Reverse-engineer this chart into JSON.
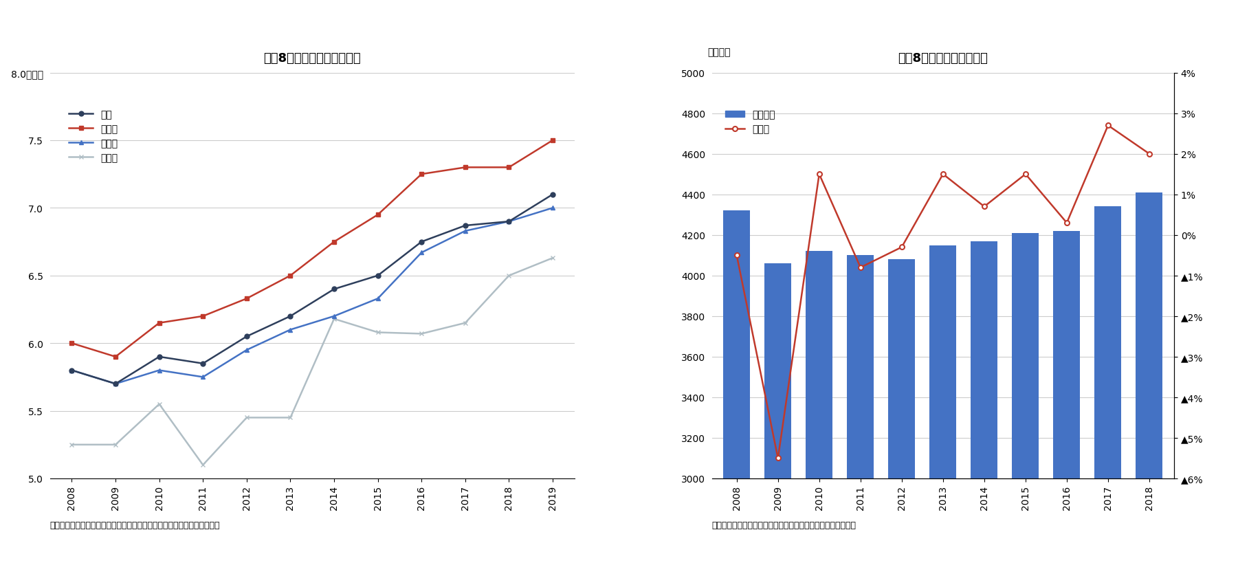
{
  "chart5": {
    "title": "図袆8５　年収倍率（平均）",
    "years": [
      2008,
      2009,
      2010,
      2011,
      2012,
      2013,
      2014,
      2015,
      2016,
      2017,
      2018,
      2019
    ],
    "series_order": [
      "全国",
      "首都圈",
      "近畿圈",
      "東海圈"
    ],
    "series": {
      "全国": {
        "values": [
          5.8,
          5.7,
          5.9,
          5.85,
          6.05,
          6.2,
          6.4,
          6.5,
          6.75,
          6.87,
          6.9,
          7.1
        ],
        "color": "#2e3f5c",
        "marker": "o",
        "linestyle": "-",
        "zorder": 4
      },
      "首都圈": {
        "values": [
          6.0,
          5.9,
          6.15,
          6.2,
          6.33,
          6.5,
          6.75,
          6.95,
          7.25,
          7.3,
          7.3,
          7.5
        ],
        "color": "#c0392b",
        "marker": "s",
        "linestyle": "-",
        "zorder": 3
      },
      "近畿圈": {
        "values": [
          5.8,
          5.7,
          5.8,
          5.75,
          5.95,
          6.1,
          6.2,
          6.33,
          6.67,
          6.83,
          6.9,
          7.0
        ],
        "color": "#4472c4",
        "marker": "^",
        "linestyle": "-",
        "zorder": 3
      },
      "東海圈": {
        "values": [
          5.25,
          5.25,
          5.55,
          5.1,
          5.45,
          5.45,
          6.18,
          6.08,
          6.07,
          6.15,
          6.5,
          6.63
        ],
        "color": "#b0bec5",
        "marker": "x",
        "linestyle": "-",
        "zorder": 2
      }
    },
    "ylim": [
      5.0,
      8.0
    ],
    "yticks": [
      5.0,
      5.5,
      6.0,
      6.5,
      7.0,
      7.5,
      8.0
    ],
    "ytick_labels": [
      "5.0",
      "5.5",
      "6.0",
      "6.5",
      "7.0",
      "7.5",
      "8.0（倍）"
    ],
    "source": "（資料）住宅金融支援機構の公表データを基にニッセイ基礎研究所が作成"
  },
  "chart6": {
    "title": "図袆8６　平均給与の推移",
    "ylabel_left": "（千円）",
    "years": [
      2008,
      2009,
      2010,
      2011,
      2012,
      2013,
      2014,
      2015,
      2016,
      2017,
      2018
    ],
    "bar_values": [
      4320,
      4060,
      4120,
      4100,
      4080,
      4150,
      4170,
      4210,
      4220,
      4340,
      4410
    ],
    "bar_color": "#4472c4",
    "line_values": [
      -0.5,
      -5.5,
      1.5,
      -0.8,
      -0.3,
      1.5,
      0.7,
      1.5,
      0.3,
      2.7,
      2.0
    ],
    "line_color": "#c0392b",
    "bar_label": "平均給与",
    "line_label": "前年比",
    "ylim_left": [
      3000,
      5000
    ],
    "yticks_left": [
      3000,
      3200,
      3400,
      3600,
      3800,
      4000,
      4200,
      4400,
      4600,
      4800,
      5000
    ],
    "ylim_right": [
      -6,
      4
    ],
    "yticks_right": [
      4,
      3,
      2,
      1,
      0,
      -1,
      -2,
      -3,
      -4,
      -5,
      -6
    ],
    "ytick_labels_right": [
      "4%",
      "3%",
      "2%",
      "1%",
      "0%",
      "▲1%",
      "▲2%",
      "▲3%",
      "▲4%",
      "▲5%",
      "▲6%"
    ],
    "source": "（資料）国税庁の公表データを基にニッセイ基礎研究所が作成"
  }
}
